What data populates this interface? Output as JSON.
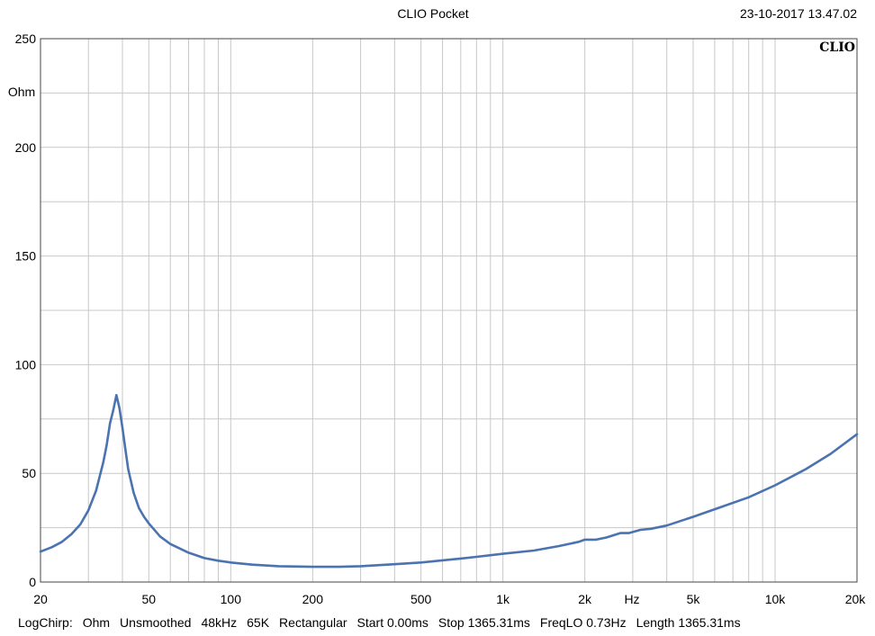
{
  "header": {
    "title": "CLIO Pocket",
    "timestamp": "23-10-2017 13.47.02",
    "brand": "CLIO"
  },
  "chart_data": {
    "type": "line",
    "title": "CLIO Pocket",
    "xlabel": "Hz",
    "ylabel": "Ohm",
    "xscale": "log",
    "xlim": [
      20,
      20000
    ],
    "ylim": [
      0,
      250
    ],
    "grid": true,
    "x_ticks": [
      {
        "value": 20,
        "label": "20"
      },
      {
        "value": 50,
        "label": "50"
      },
      {
        "value": 100,
        "label": "100"
      },
      {
        "value": 200,
        "label": "200"
      },
      {
        "value": 500,
        "label": "500"
      },
      {
        "value": 1000,
        "label": "1k"
      },
      {
        "value": 2000,
        "label": "2k"
      },
      {
        "value": 5000,
        "label": "5k"
      },
      {
        "value": 10000,
        "label": "10k"
      },
      {
        "value": 20000,
        "label": "20k"
      }
    ],
    "y_ticks": [
      0,
      50,
      100,
      150,
      200,
      250
    ],
    "series": [
      {
        "color": "#4a73b0",
        "x": [
          20,
          22,
          24,
          26,
          28,
          30,
          32,
          34,
          35,
          36,
          37,
          38,
          39,
          40,
          41,
          42,
          44,
          46,
          48,
          50,
          55,
          60,
          70,
          80,
          90,
          100,
          120,
          150,
          200,
          250,
          300,
          400,
          500,
          700,
          800,
          1000,
          1300,
          1600,
          1900,
          2000,
          2200,
          2400,
          2700,
          2900,
          3200,
          3500,
          4000,
          5000,
          6000,
          8000,
          10000,
          13000,
          16000,
          20000
        ],
        "y": [
          14,
          16,
          18.5,
          22,
          26.5,
          33,
          42,
          55,
          63,
          73,
          79,
          86,
          80,
          71,
          61,
          52,
          41,
          34,
          30,
          27,
          21,
          17.5,
          13.5,
          11,
          9.8,
          9,
          8,
          7.3,
          7,
          7,
          7.3,
          8.2,
          9,
          10.8,
          11.6,
          13,
          14.5,
          16.5,
          18.5,
          19.5,
          19.5,
          20.5,
          22.5,
          22.5,
          24,
          24.5,
          26,
          30,
          33.5,
          39,
          44.5,
          52,
          59,
          68
        ]
      }
    ]
  },
  "status_bar": {
    "items": [
      "LogChirp:",
      "Ohm",
      "Unsmoothed",
      "48kHz",
      "65K",
      "Rectangular",
      "Start 0.00ms",
      "Stop 1365.31ms",
      "FreqLO 0.73Hz",
      "Length 1365.31ms"
    ]
  }
}
